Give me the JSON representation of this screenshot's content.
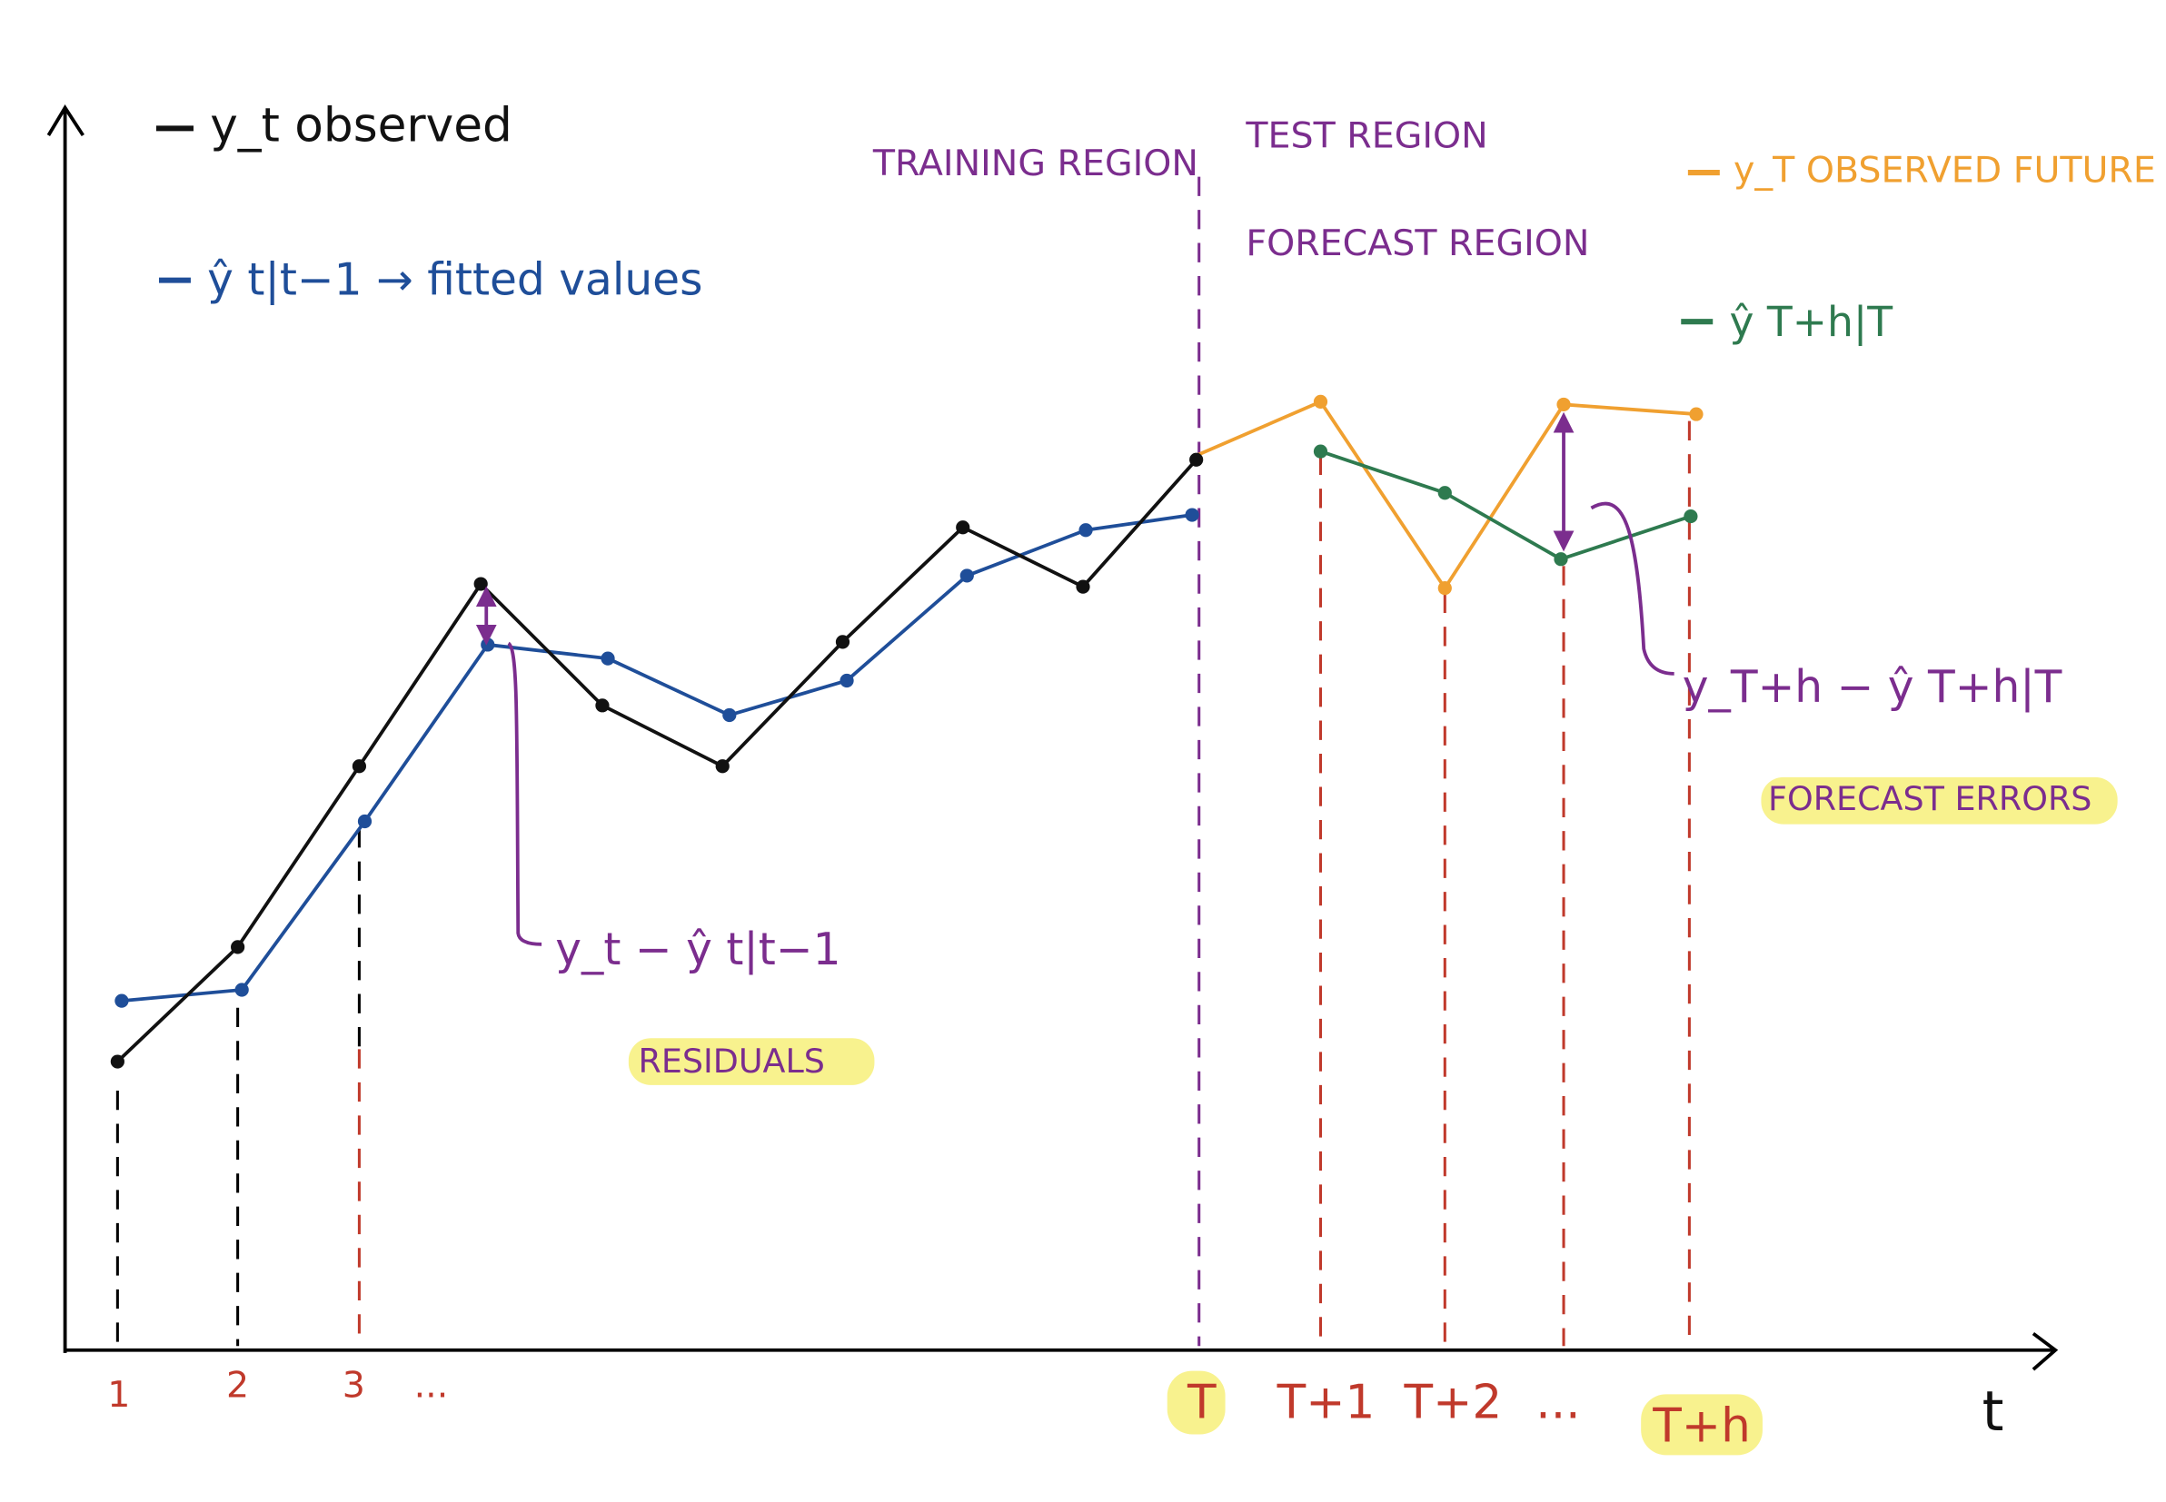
{
  "legend": {
    "observed": "y_t observed",
    "fitted": "ŷ t|t−1 → fitted values",
    "future": "y_T OBSERVED FUTURE",
    "forecast": "ŷ T+h|T"
  },
  "regions": {
    "training": "TRAINING REGION",
    "test": "TEST REGION",
    "forecast": "FORECAST REGION"
  },
  "annotations": {
    "residual_formula": "y_t − ŷ t|t−1",
    "residuals": "RESIDUALS",
    "error_formula": "y_T+h − ŷ T+h|T",
    "errors": "FORECAST ERRORS"
  },
  "x_axis": {
    "label": "t",
    "ticks": [
      "1",
      "2",
      "3",
      "...",
      "T",
      "T+1",
      "T+2",
      "...",
      "T+h"
    ]
  }
}
